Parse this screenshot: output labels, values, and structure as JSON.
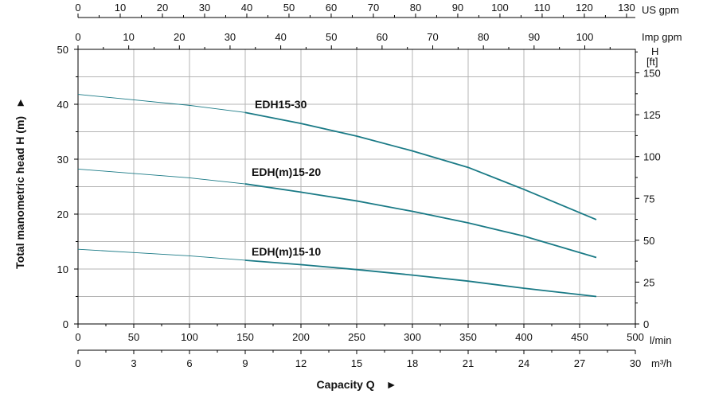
{
  "chart_data": {
    "type": "line",
    "xlabel": "Capacity Q",
    "xlabel_arrow": "►",
    "ylabel": "Total manometric head H (m)",
    "ylabel_arrow": "►",
    "colors": {
      "series": "#1a7a86",
      "grid": "#b5b5b5",
      "axis": "#000000"
    },
    "axes": {
      "lmin": {
        "unit": "l/min",
        "range": [
          0,
          500
        ],
        "ticks": [
          "0",
          "50",
          "100",
          "150",
          "200",
          "250",
          "300",
          "350",
          "400",
          "450",
          "500"
        ]
      },
      "m3h": {
        "unit": "m³/h",
        "range": [
          0,
          30
        ],
        "ticks": [
          "0",
          "3",
          "6",
          "9",
          "12",
          "15",
          "18",
          "21",
          "24",
          "27",
          "30"
        ]
      },
      "usgpm": {
        "unit": "US gpm",
        "range": [
          0,
          132.09
        ],
        "ticks": [
          "0",
          "10",
          "20",
          "30",
          "40",
          "50",
          "60",
          "70",
          "80",
          "90",
          "100",
          "110",
          "120",
          "130"
        ]
      },
      "impgpm": {
        "unit": "Imp gpm",
        "range": [
          0,
          109.98
        ],
        "ticks": [
          "0",
          "10",
          "20",
          "30",
          "40",
          "50",
          "60",
          "70",
          "80",
          "90",
          "100"
        ]
      },
      "head_m": {
        "unit": "m",
        "range": [
          0,
          50
        ],
        "ticks": [
          "0",
          "10",
          "20",
          "30",
          "40",
          "50"
        ]
      },
      "head_ft": {
        "unit_line1": "H",
        "unit_line2": "[ft]",
        "range": [
          0,
          164.04
        ],
        "ticks": [
          "0",
          "25",
          "50",
          "75",
          "100",
          "125",
          "150"
        ]
      }
    },
    "grid": true,
    "series": [
      {
        "name": "EDH15-30",
        "x": [
          0,
          50,
          100,
          150,
          200,
          250,
          300,
          350,
          400,
          465
        ],
        "y": [
          41.8,
          40.8,
          39.8,
          38.5,
          36.5,
          34.2,
          31.5,
          28.5,
          24.5,
          19.0
        ]
      },
      {
        "name": "EDH(m)15-20",
        "x": [
          0,
          50,
          100,
          150,
          200,
          250,
          300,
          350,
          400,
          465
        ],
        "y": [
          28.2,
          27.4,
          26.6,
          25.5,
          24.0,
          22.4,
          20.5,
          18.4,
          16.0,
          12.1
        ]
      },
      {
        "name": "EDH(m)15-10",
        "x": [
          0,
          50,
          100,
          150,
          200,
          250,
          300,
          350,
          400,
          465
        ],
        "y": [
          13.6,
          13.0,
          12.4,
          11.6,
          10.8,
          9.9,
          8.9,
          7.8,
          6.5,
          5.0
        ]
      }
    ]
  }
}
